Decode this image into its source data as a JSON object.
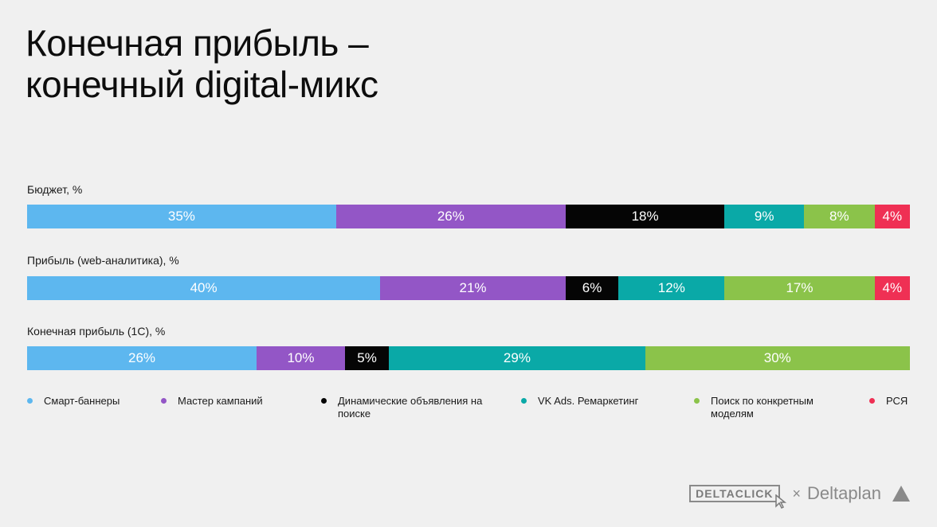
{
  "title_lines": [
    "Конечная прибыль –",
    "конечный digital-микс"
  ],
  "chart_data": {
    "type": "bar",
    "orientation": "horizontal",
    "stacked": true,
    "percent_stacked": true,
    "rows": [
      {
        "label": "Бюджет, %",
        "values": [
          35,
          26,
          18,
          9,
          8,
          4
        ],
        "labels": [
          "35%",
          "26%",
          "18%",
          "9%",
          "8%",
          "4%"
        ]
      },
      {
        "label": "Прибыль (web-аналитика), %",
        "values": [
          40,
          21,
          6,
          12,
          17,
          4
        ],
        "labels": [
          "40%",
          "21%",
          "6%",
          "12%",
          "17%",
          "4%"
        ]
      },
      {
        "label": "Конечная прибыль (1С), %",
        "values": [
          26,
          10,
          5,
          29,
          30,
          0
        ],
        "labels": [
          "26%",
          "10%",
          "5%",
          "29%",
          "30%",
          ""
        ]
      }
    ],
    "series": [
      {
        "name": "Смарт-баннеры",
        "color": "#5db7ef"
      },
      {
        "name": "Мастер кампаний",
        "color": "#9356c6"
      },
      {
        "name": "Динамические объявления на поиске",
        "color": "#050505"
      },
      {
        "name": "VK Ads. Ремаркетинг",
        "color": "#0aa9a7"
      },
      {
        "name": "Поиск по конкретным моделям",
        "color": "#8bc34a"
      },
      {
        "name": "РСЯ",
        "color": "#ef3054"
      }
    ]
  },
  "logos": {
    "deltaclick": "DELTACLICK",
    "times": "×",
    "deltaplan": "Deltaplan"
  }
}
